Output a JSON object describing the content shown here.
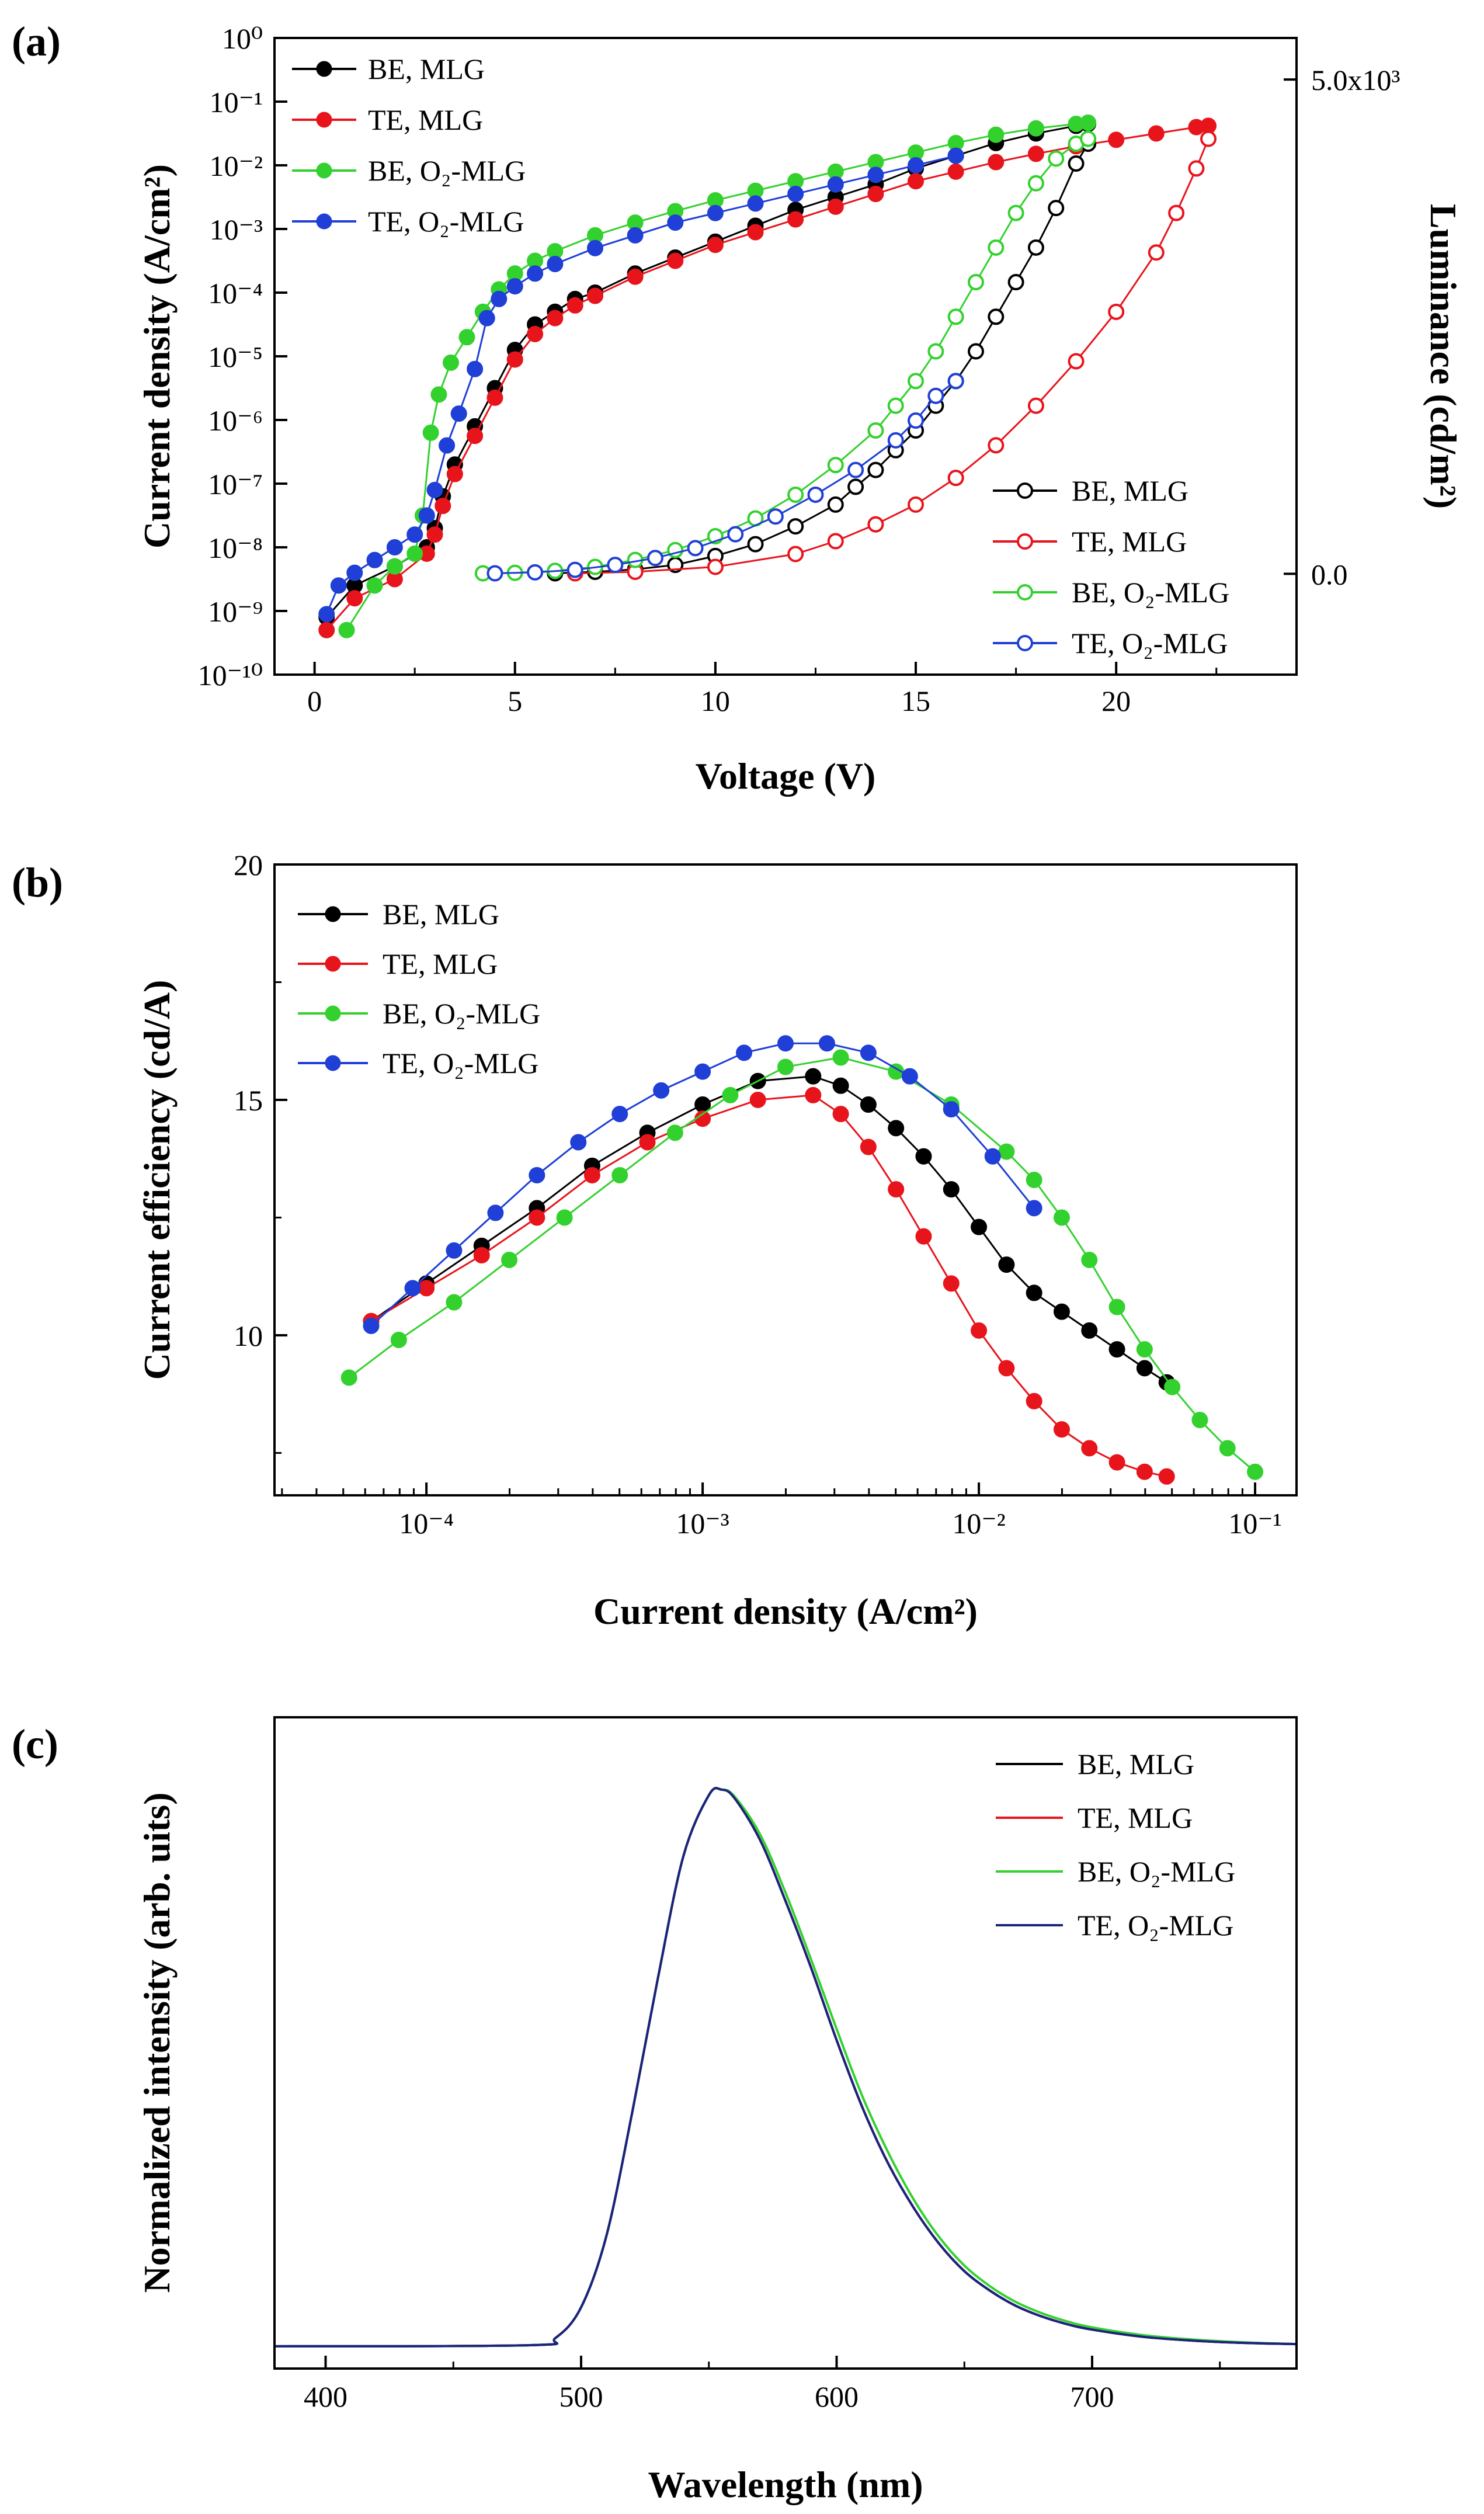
{
  "chart_data": [
    {
      "panel": "(a)",
      "type": "scatter",
      "xlabel": "Voltage (V)",
      "ylabel": "Current density (A/cm²)",
      "y2label": "Luminance (cd/m²)",
      "xlim": [
        -1,
        24.5
      ],
      "ylim_log10": [
        -10,
        0
      ],
      "y2lim": [
        -1020,
        5420
      ],
      "x_ticks": [
        0,
        5,
        10,
        15,
        20
      ],
      "x_tick_labels": [
        "0",
        "5",
        "10",
        "15",
        "20"
      ],
      "y_ticks": [
        0,
        -1,
        -2,
        -3,
        -4,
        -5,
        -6,
        -7,
        -8,
        -9,
        -10
      ],
      "y_tick_labels": [
        "10⁰",
        "10⁻¹",
        "10⁻²",
        "10⁻³",
        "10⁻⁴",
        "10⁻⁵",
        "10⁻⁶",
        "10⁻⁷",
        "10⁻⁸",
        "10⁻⁹",
        "10⁻¹⁰"
      ],
      "y2_ticks": [
        0,
        5000
      ],
      "y2_tick_labels": [
        "0.0",
        "5.0x10³"
      ],
      "legend_position": "top-left",
      "legend2_position": "bottom-right",
      "legend": [
        "BE, MLG",
        "TE, MLG",
        "BE, O₂-MLG",
        "TE, O₂-MLG"
      ],
      "legend2": [
        "BE, MLG",
        "TE, MLG",
        "BE, O₂-MLG",
        "TE, O₂-MLG"
      ],
      "series": [
        {
          "name": "BE, MLG",
          "color": "#000000",
          "marker": "filled-circle",
          "axis": "left",
          "x": [
            0.3,
            1.0,
            2.0,
            2.8,
            3.0,
            3.2,
            3.5,
            4.0,
            4.5,
            5.0,
            5.5,
            6.0,
            6.5,
            7.0,
            8.0,
            9.0,
            10.0,
            11.0,
            12.0,
            13.0,
            14.0,
            15.0,
            16.0,
            17.0,
            18.0,
            19.0,
            19.3
          ],
          "log10_y": [
            -9.1,
            -8.6,
            -8.3,
            -8.0,
            -7.7,
            -7.2,
            -6.7,
            -6.1,
            -5.5,
            -4.9,
            -4.5,
            -4.3,
            -4.1,
            -4.0,
            -3.7,
            -3.45,
            -3.2,
            -2.95,
            -2.7,
            -2.5,
            -2.3,
            -2.05,
            -1.85,
            -1.65,
            -1.5,
            -1.38,
            -1.35
          ]
        },
        {
          "name": "TE, MLG",
          "color": "#e8141c",
          "marker": "filled-circle",
          "axis": "left",
          "x": [
            0.3,
            1.0,
            2.0,
            2.8,
            3.0,
            3.2,
            3.5,
            4.0,
            4.5,
            5.0,
            5.5,
            6.0,
            6.5,
            7.0,
            8.0,
            9.0,
            10.0,
            11.0,
            12.0,
            13.0,
            14.0,
            15.0,
            16.0,
            17.0,
            18.0,
            19.0,
            20.0,
            21.0,
            22.0,
            22.3
          ],
          "log10_y": [
            -9.3,
            -8.8,
            -8.5,
            -8.1,
            -7.8,
            -7.35,
            -6.85,
            -6.25,
            -5.65,
            -5.05,
            -4.65,
            -4.4,
            -4.2,
            -4.05,
            -3.75,
            -3.5,
            -3.25,
            -3.05,
            -2.85,
            -2.65,
            -2.45,
            -2.25,
            -2.1,
            -1.95,
            -1.82,
            -1.7,
            -1.6,
            -1.5,
            -1.4,
            -1.38
          ]
        },
        {
          "name": "BE, O₂-MLG",
          "color": "#33d12e",
          "marker": "filled-circle",
          "axis": "left",
          "x": [
            0.8,
            1.5,
            2.0,
            2.5,
            2.7,
            2.9,
            3.1,
            3.4,
            3.8,
            4.2,
            4.6,
            5.0,
            5.5,
            6.0,
            7.0,
            8.0,
            9.0,
            10.0,
            11.0,
            12.0,
            13.0,
            14.0,
            15.0,
            16.0,
            17.0,
            18.0,
            19.0,
            19.3
          ],
          "log10_y": [
            -9.3,
            -8.6,
            -8.3,
            -8.1,
            -7.5,
            -6.2,
            -5.6,
            -5.1,
            -4.7,
            -4.3,
            -3.95,
            -3.7,
            -3.5,
            -3.35,
            -3.1,
            -2.9,
            -2.72,
            -2.55,
            -2.4,
            -2.25,
            -2.1,
            -1.95,
            -1.8,
            -1.65,
            -1.52,
            -1.42,
            -1.35,
            -1.33
          ]
        },
        {
          "name": "TE, O₂-MLG",
          "color": "#1f3fd6",
          "marker": "filled-circle",
          "axis": "left",
          "x": [
            0.3,
            0.6,
            1.0,
            1.5,
            2.0,
            2.5,
            2.8,
            3.0,
            3.3,
            3.6,
            4.0,
            4.3,
            4.6,
            5.0,
            5.5,
            6.0,
            7.0,
            8.0,
            9.0,
            10.0,
            11.0,
            12.0,
            13.0,
            14.0,
            15.0,
            16.0
          ],
          "log10_y": [
            -9.05,
            -8.6,
            -8.4,
            -8.2,
            -8.0,
            -7.8,
            -7.5,
            -7.1,
            -6.4,
            -5.9,
            -5.2,
            -4.4,
            -4.1,
            -3.9,
            -3.7,
            -3.55,
            -3.3,
            -3.1,
            -2.9,
            -2.75,
            -2.6,
            -2.45,
            -2.3,
            -2.15,
            -2.0,
            -1.85
          ]
        },
        {
          "name": "BE, MLG",
          "color": "#000000",
          "marker": "open-circle",
          "axis": "right",
          "x": [
            6.0,
            7.0,
            8.0,
            9.0,
            10.0,
            11.0,
            12.0,
            13.0,
            13.5,
            14.0,
            14.5,
            15.0,
            15.5,
            16.0,
            16.5,
            17.0,
            17.5,
            18.0,
            18.5,
            19.0,
            19.3
          ],
          "y": [
            5,
            20,
            45,
            90,
            180,
            300,
            480,
            700,
            880,
            1050,
            1250,
            1450,
            1700,
            1950,
            2250,
            2600,
            2950,
            3300,
            3700,
            4150,
            4350
          ]
        },
        {
          "name": "TE, MLG",
          "color": "#e8141c",
          "marker": "open-circle",
          "axis": "right",
          "x": [
            6.5,
            8.0,
            10.0,
            12.0,
            13.0,
            14.0,
            15.0,
            16.0,
            17.0,
            18.0,
            19.0,
            20.0,
            21.0,
            21.5,
            22.0,
            22.3
          ],
          "y": [
            5,
            20,
            70,
            200,
            330,
            500,
            700,
            970,
            1300,
            1700,
            2150,
            2650,
            3250,
            3650,
            4100,
            4400
          ]
        },
        {
          "name": "BE, O₂-MLG",
          "color": "#33d12e",
          "marker": "open-circle",
          "axis": "right",
          "x": [
            4.2,
            5.0,
            6.0,
            7.0,
            8.0,
            9.0,
            10.0,
            11.0,
            12.0,
            13.0,
            14.0,
            14.5,
            15.0,
            15.5,
            16.0,
            16.5,
            17.0,
            17.5,
            18.0,
            18.5,
            19.0,
            19.3
          ],
          "y": [
            5,
            10,
            30,
            70,
            140,
            240,
            380,
            560,
            800,
            1100,
            1450,
            1700,
            1950,
            2250,
            2600,
            2950,
            3300,
            3650,
            3950,
            4200,
            4350,
            4400
          ]
        },
        {
          "name": "TE, O₂-MLG",
          "color": "#1f3fd6",
          "marker": "open-circle",
          "axis": "right",
          "x": [
            4.5,
            5.5,
            6.5,
            7.5,
            8.5,
            9.5,
            10.5,
            11.5,
            12.5,
            13.5,
            14.5,
            15.0,
            15.5,
            16.0
          ],
          "y": [
            5,
            15,
            40,
            90,
            160,
            260,
            400,
            580,
            800,
            1050,
            1350,
            1550,
            1800,
            1950
          ]
        }
      ]
    },
    {
      "panel": "(b)",
      "type": "scatter",
      "xlabel": "Current density (A/cm²)",
      "ylabel": "Current efficiency (cd/A)",
      "xlim_log10": [
        -4.55,
        -0.85
      ],
      "ylim": [
        6.6,
        20
      ],
      "x_ticks": [
        -4,
        -3,
        -2,
        -1
      ],
      "x_tick_labels": [
        "10⁻⁴",
        "10⁻³",
        "10⁻²",
        "10⁻¹"
      ],
      "y_ticks": [
        10,
        15,
        20
      ],
      "y_tick_labels": [
        "10",
        "15",
        "20"
      ],
      "legend_position": "top-left",
      "legend": [
        "BE, MLG",
        "TE, MLG",
        "BE, O₂-MLG",
        "TE, O₂-MLG"
      ],
      "series": [
        {
          "name": "BE, MLG",
          "color": "#000000",
          "marker": "filled-circle",
          "log10_x": [
            -4.2,
            -4.0,
            -3.8,
            -3.6,
            -3.4,
            -3.2,
            -3.0,
            -2.8,
            -2.6,
            -2.5,
            -2.4,
            -2.3,
            -2.2,
            -2.1,
            -2.0,
            -1.9,
            -1.8,
            -1.7,
            -1.6,
            -1.5,
            -1.4,
            -1.32
          ],
          "y": [
            10.3,
            11.1,
            11.9,
            12.7,
            13.6,
            14.3,
            14.9,
            15.4,
            15.5,
            15.3,
            14.9,
            14.4,
            13.8,
            13.1,
            12.3,
            11.5,
            10.9,
            10.5,
            10.1,
            9.7,
            9.3,
            9.0
          ]
        },
        {
          "name": "TE, MLG",
          "color": "#e8141c",
          "marker": "filled-circle",
          "log10_x": [
            -4.2,
            -4.0,
            -3.8,
            -3.6,
            -3.4,
            -3.2,
            -3.0,
            -2.8,
            -2.6,
            -2.5,
            -2.4,
            -2.3,
            -2.2,
            -2.1,
            -2.0,
            -1.9,
            -1.8,
            -1.7,
            -1.6,
            -1.5,
            -1.4,
            -1.32
          ],
          "y": [
            10.3,
            11.0,
            11.7,
            12.5,
            13.4,
            14.1,
            14.6,
            15.0,
            15.1,
            14.7,
            14.0,
            13.1,
            12.1,
            11.1,
            10.1,
            9.3,
            8.6,
            8.0,
            7.6,
            7.3,
            7.1,
            7.0
          ]
        },
        {
          "name": "BE, O₂-MLG",
          "color": "#33d12e",
          "marker": "filled-circle",
          "log10_x": [
            -4.28,
            -4.1,
            -3.9,
            -3.7,
            -3.5,
            -3.3,
            -3.1,
            -2.9,
            -2.7,
            -2.5,
            -2.3,
            -2.1,
            -1.9,
            -1.8,
            -1.7,
            -1.6,
            -1.5,
            -1.4,
            -1.3,
            -1.2,
            -1.1,
            -1.0
          ],
          "y": [
            9.1,
            9.9,
            10.7,
            11.6,
            12.5,
            13.4,
            14.3,
            15.1,
            15.7,
            15.9,
            15.6,
            14.9,
            13.9,
            13.3,
            12.5,
            11.6,
            10.6,
            9.7,
            8.9,
            8.2,
            7.6,
            7.1
          ]
        },
        {
          "name": "TE, O₂-MLG",
          "color": "#1f3fd6",
          "marker": "filled-circle",
          "log10_x": [
            -4.2,
            -4.05,
            -3.9,
            -3.75,
            -3.6,
            -3.45,
            -3.3,
            -3.15,
            -3.0,
            -2.85,
            -2.7,
            -2.55,
            -2.4,
            -2.25,
            -2.1,
            -1.95,
            -1.8
          ],
          "y": [
            10.2,
            11.0,
            11.8,
            12.6,
            13.4,
            14.1,
            14.7,
            15.2,
            15.6,
            16.0,
            16.2,
            16.2,
            16.0,
            15.5,
            14.8,
            13.8,
            12.7
          ]
        }
      ]
    },
    {
      "panel": "(c)",
      "type": "line",
      "xlabel": "Wavelength (nm)",
      "ylabel": "Normalized intensity (arb. uits)",
      "xlim": [
        380,
        780
      ],
      "ylim": [
        -0.04,
        1.13
      ],
      "x_ticks": [
        400,
        500,
        600,
        700
      ],
      "x_tick_labels": [
        "400",
        "500",
        "600",
        "700"
      ],
      "legend_position": "top-right",
      "legend": [
        "BE, MLG",
        "TE, MLG",
        "BE, O₂-MLG",
        "TE, O₂-MLG"
      ],
      "series": [
        {
          "name": "BE, MLG",
          "color": "#000000",
          "x": [
            380,
            480,
            490,
            500,
            510,
            520,
            530,
            540,
            550,
            555,
            560,
            570,
            580,
            590,
            600,
            610,
            620,
            630,
            640,
            650,
            660,
            670,
            680,
            690,
            700,
            720,
            740,
            760,
            780
          ],
          "y": [
            0,
            0.002,
            0.015,
            0.07,
            0.2,
            0.42,
            0.66,
            0.88,
            0.99,
            1.0,
            0.985,
            0.91,
            0.8,
            0.68,
            0.55,
            0.43,
            0.33,
            0.25,
            0.185,
            0.135,
            0.1,
            0.073,
            0.054,
            0.04,
            0.03,
            0.017,
            0.01,
            0.006,
            0.004
          ]
        },
        {
          "name": "TE, MLG",
          "color": "#e8141c",
          "x": [
            380,
            480,
            490,
            500,
            510,
            520,
            530,
            540,
            550,
            555,
            560,
            570,
            580,
            590,
            600,
            610,
            620,
            630,
            640,
            650,
            660,
            670,
            680,
            690,
            700,
            720,
            740,
            760,
            780
          ],
          "y": [
            0,
            0.002,
            0.015,
            0.07,
            0.2,
            0.42,
            0.66,
            0.88,
            0.99,
            1.0,
            0.985,
            0.91,
            0.8,
            0.68,
            0.55,
            0.43,
            0.33,
            0.25,
            0.185,
            0.135,
            0.1,
            0.073,
            0.054,
            0.04,
            0.03,
            0.017,
            0.01,
            0.006,
            0.004
          ]
        },
        {
          "name": "BE, O₂-MLG",
          "color": "#33d12e",
          "x": [
            380,
            480,
            490,
            500,
            510,
            520,
            530,
            540,
            550,
            555,
            560,
            570,
            580,
            590,
            600,
            610,
            620,
            630,
            640,
            650,
            660,
            670,
            680,
            690,
            700,
            720,
            740,
            760,
            780
          ],
          "y": [
            0,
            0.002,
            0.015,
            0.07,
            0.2,
            0.42,
            0.66,
            0.88,
            0.99,
            1.0,
            0.988,
            0.92,
            0.815,
            0.695,
            0.57,
            0.45,
            0.35,
            0.265,
            0.197,
            0.145,
            0.108,
            0.08,
            0.06,
            0.045,
            0.034,
            0.02,
            0.012,
            0.007,
            0.004
          ]
        },
        {
          "name": "TE, O₂-MLG",
          "color": "#1a237e",
          "x": [
            380,
            480,
            490,
            500,
            510,
            520,
            530,
            540,
            550,
            555,
            560,
            570,
            580,
            590,
            600,
            610,
            620,
            630,
            640,
            650,
            660,
            670,
            680,
            690,
            700,
            720,
            740,
            760,
            780
          ],
          "y": [
            0,
            0.002,
            0.015,
            0.07,
            0.2,
            0.42,
            0.66,
            0.88,
            0.99,
            1.0,
            0.985,
            0.91,
            0.8,
            0.68,
            0.55,
            0.43,
            0.33,
            0.25,
            0.185,
            0.135,
            0.1,
            0.073,
            0.054,
            0.04,
            0.03,
            0.017,
            0.01,
            0.006,
            0.004
          ]
        }
      ]
    }
  ]
}
